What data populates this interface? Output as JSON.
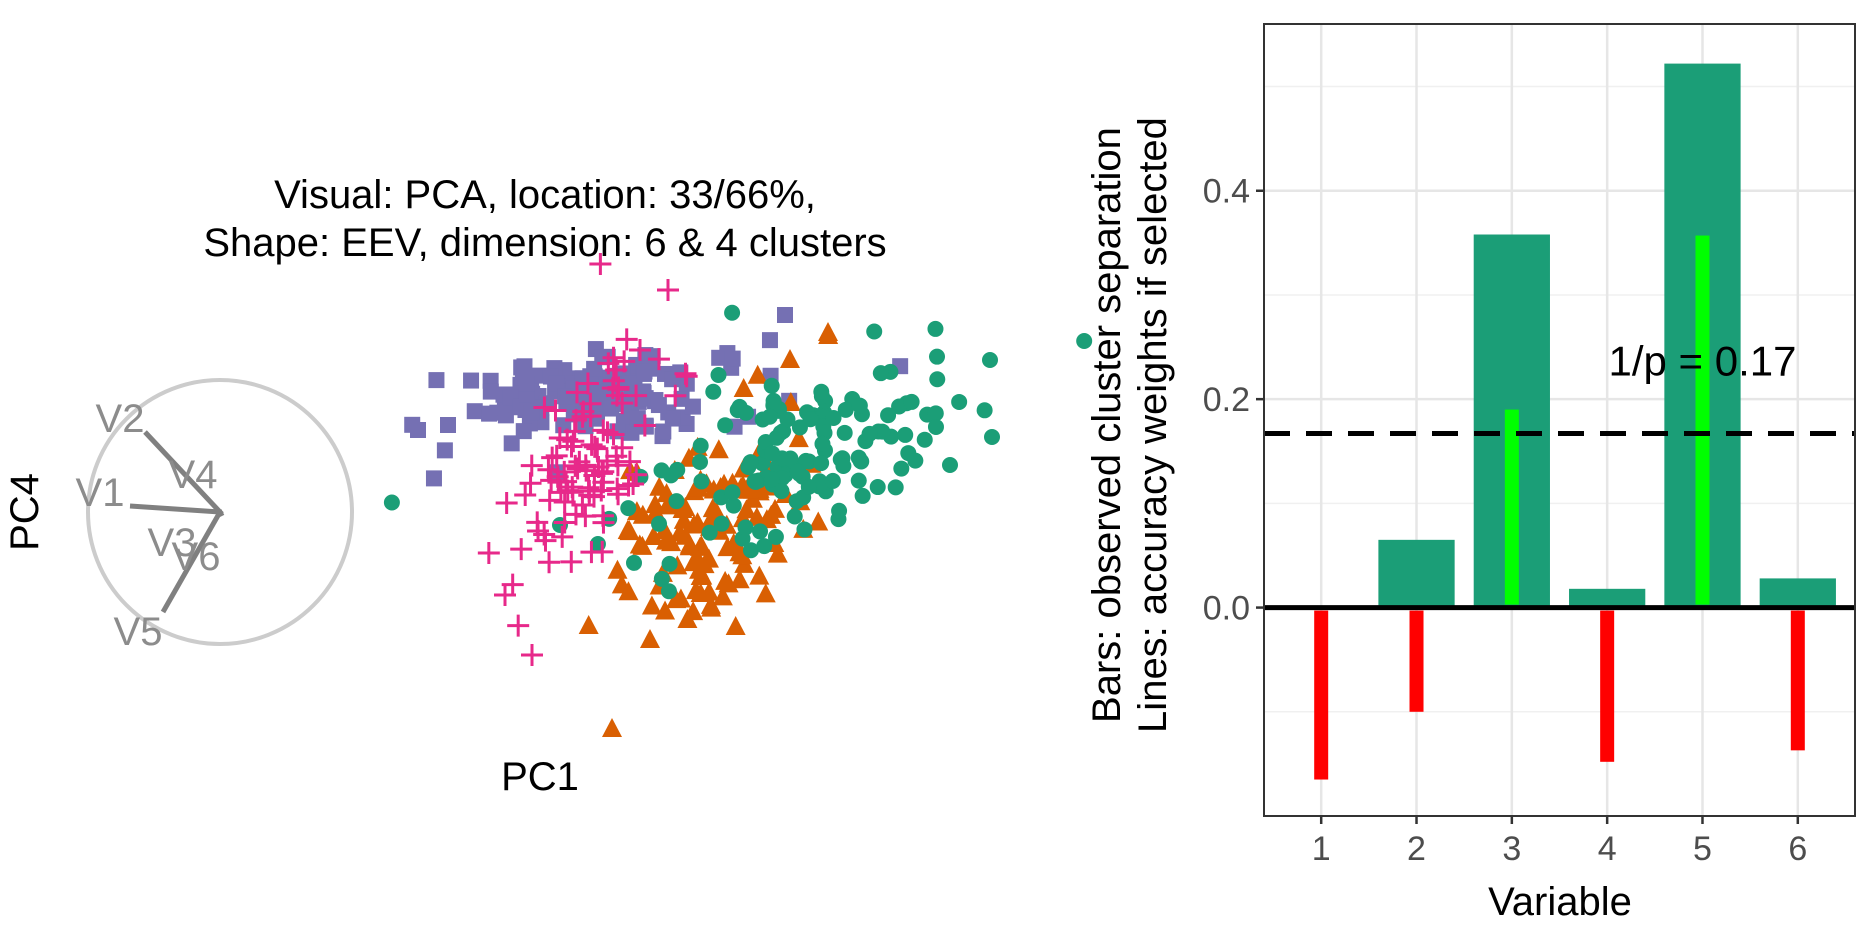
{
  "colors": {
    "cluster1": "#7570b3",
    "cluster2": "#e7298a",
    "cluster3": "#1b9e77",
    "cluster4": "#d95f02",
    "bar_fill": "#1b9e77",
    "weight_positive": "#00ff00",
    "weight_negative": "#ff0000",
    "biplot_axes": "#808080",
    "biplot_circle": "#cccccc"
  },
  "left_panel": {
    "title_line1": "Visual: PCA, location: 33/66%,",
    "title_line2": "Shape: EEV, dimension: 6 & 4 clusters",
    "x_axis_label": "PC1",
    "y_axis_label": "PC4",
    "biplot_labels": [
      "V2",
      "V1",
      "V4",
      "V3",
      "V6",
      "V5"
    ],
    "cluster_shapes": [
      "square-icon",
      "plus-icon",
      "circle-icon",
      "triangle-icon"
    ]
  },
  "chart_data": {
    "type": "bar",
    "categories": [
      "1",
      "2",
      "3",
      "4",
      "5",
      "6"
    ],
    "series": [
      {
        "name": "Bars: observed cluster separation",
        "values": [
          0.0,
          0.065,
          0.358,
          0.018,
          0.522,
          0.028
        ]
      },
      {
        "name": "Lines: accuracy weights if selected",
        "values": [
          -0.165,
          -0.1,
          0.19,
          -0.148,
          0.357,
          -0.137
        ]
      }
    ],
    "reference_line": {
      "value": 0.167,
      "label": "1/p = 0.17",
      "style": "dashed"
    },
    "xlabel": "Variable",
    "ylabel_line1": "Bars: observed cluster separation",
    "ylabel_line2": "Lines: accuracy weights if selected",
    "ylim": [
      -0.2,
      0.56
    ],
    "yticks": [
      0.0,
      0.2,
      0.4
    ],
    "ytick_labels": [
      "0.0",
      "0.2",
      "0.4"
    ],
    "grid": true
  }
}
